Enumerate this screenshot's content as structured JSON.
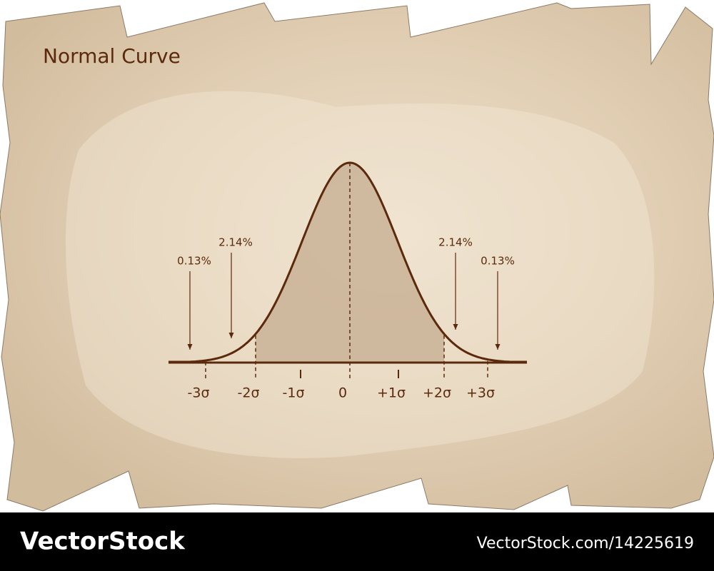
{
  "title": "Normal Curve",
  "axis": {
    "ticks": [
      "-3σ",
      "-2σ",
      "-1σ",
      "0",
      "+1σ",
      "+2σ",
      "+3σ"
    ]
  },
  "annotations": [
    "0.13%",
    "2.14%",
    "2.14%",
    "0.13%"
  ],
  "footer": {
    "brand": "VectorStock",
    "id": "VectorStock.com/14225619"
  }
}
